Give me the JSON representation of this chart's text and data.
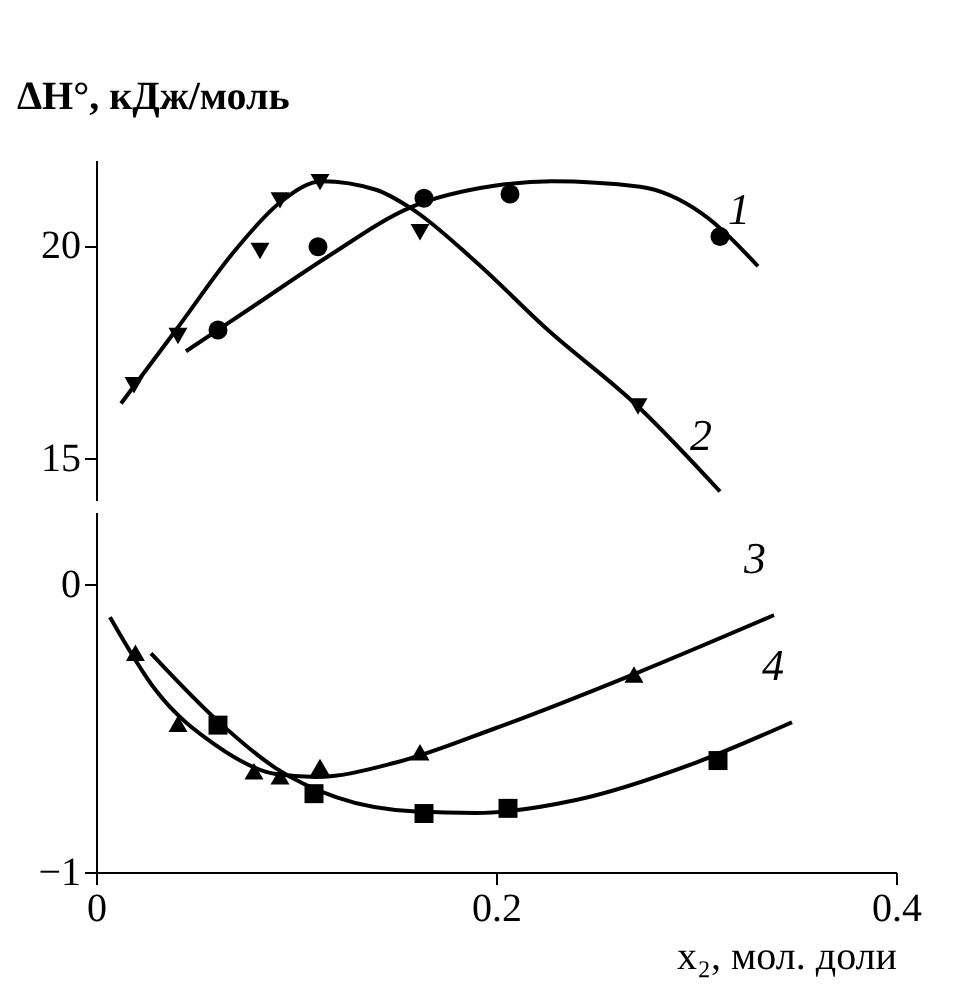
{
  "chart_data": [
    {
      "type": "scatter",
      "ylabel": "ΔH°, кДж/моль",
      "xlim": [
        0,
        0.4
      ],
      "xticks": [
        0,
        0.2,
        0.4
      ],
      "ylim": [
        14,
        22
      ],
      "yticks": [
        15,
        20
      ],
      "tick_labels": "y",
      "series": [
        {
          "type": "scatter",
          "marker": "circle",
          "color": "#000000",
          "x": [
            0.061,
            0.111,
            0.164,
            0.207,
            0.312
          ],
          "values": [
            18.0,
            19.96,
            21.1,
            21.2,
            20.2
          ]
        },
        {
          "type": "scatter",
          "marker": "triangle-down",
          "color": "#000000",
          "x": [
            0.019,
            0.041,
            0.082,
            0.092,
            0.112,
            0.162,
            0.271
          ],
          "values": [
            16.7,
            17.86,
            19.86,
            21.05,
            21.48,
            20.3,
            16.2
          ]
        },
        {
          "type": "line",
          "name": "1",
          "color": "#000000",
          "x": [
            0.045,
            0.08,
            0.115,
            0.157,
            0.2,
            0.228,
            0.272,
            0.303,
            0.331
          ],
          "values": [
            17.5,
            18.6,
            19.7,
            20.88,
            21.4,
            21.5,
            21.37,
            20.74,
            19.5
          ]
        },
        {
          "type": "line",
          "name": "2",
          "color": "#000000",
          "x": [
            0.0125,
            0.04,
            0.07,
            0.092,
            0.113,
            0.14,
            0.157,
            0.19,
            0.225,
            0.271,
            0.312
          ],
          "values": [
            16.27,
            18.0,
            19.9,
            21.0,
            21.5,
            21.3,
            20.88,
            19.6,
            18.04,
            16.2,
            14.2
          ]
        }
      ]
    },
    {
      "type": "scatter",
      "xlabel": "x₂, мол. доли",
      "xlim": [
        0,
        0.4
      ],
      "xticks": [
        0,
        0.2,
        0.4
      ],
      "ylim": [
        -1,
        0.25
      ],
      "yticks": [
        -1,
        0
      ],
      "series": [
        {
          "type": "scatter",
          "marker": "triangle",
          "color": "#000000",
          "x": [
            0.0197,
            0.041,
            0.079,
            0.092,
            0.112,
            0.162,
            0.269
          ],
          "values": [
            -0.239,
            -0.485,
            -0.65,
            -0.668,
            -0.635,
            -0.584,
            -0.314
          ]
        },
        {
          "type": "scatter",
          "marker": "square",
          "color": "#000000",
          "x": [
            0.061,
            0.109,
            0.164,
            0.206,
            0.311
          ],
          "values": [
            -0.49,
            -0.728,
            -0.797,
            -0.779,
            -0.613
          ]
        },
        {
          "type": "line",
          "name": "3",
          "color": "#000000",
          "x": [
            0.007,
            0.03,
            0.06,
            0.09,
            0.11,
            0.15,
            0.2,
            0.27,
            0.339
          ],
          "values": [
            -0.115,
            -0.37,
            -0.56,
            -0.66,
            -0.67,
            -0.62,
            -0.5,
            -0.31,
            -0.108
          ]
        },
        {
          "type": "line",
          "name": "4",
          "color": "#000000",
          "x": [
            0.0275,
            0.06,
            0.09,
            0.12,
            0.16,
            0.19,
            0.24,
            0.3,
            0.348
          ],
          "values": [
            -0.241,
            -0.47,
            -0.64,
            -0.74,
            -0.79,
            -0.795,
            -0.75,
            -0.62,
            -0.48
          ]
        }
      ]
    }
  ]
}
